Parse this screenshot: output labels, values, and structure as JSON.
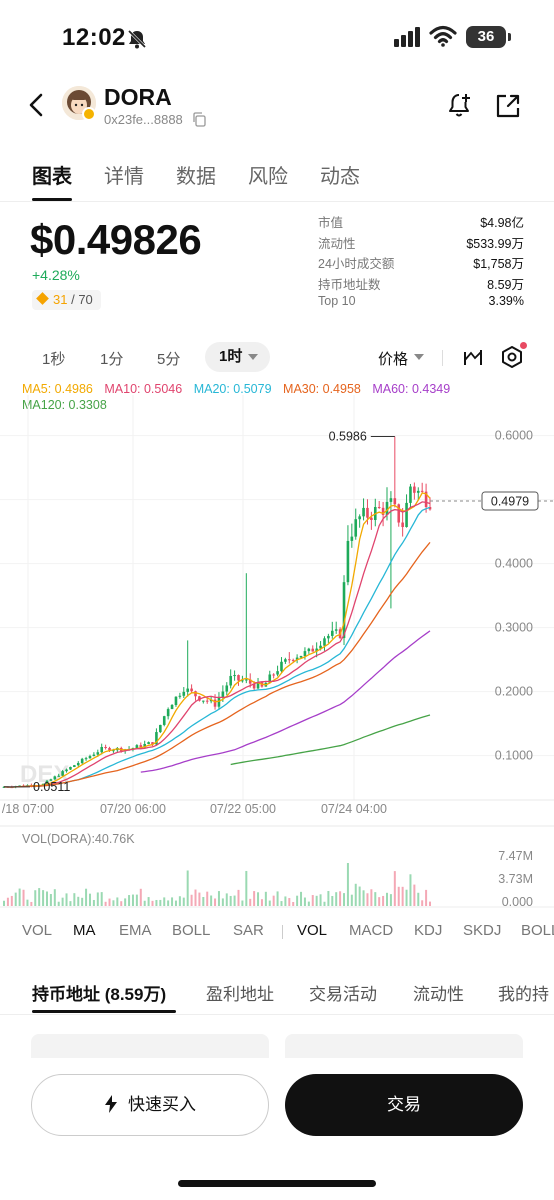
{
  "status_bar": {
    "time": "12:02",
    "battery": "36"
  },
  "header": {
    "token_name": "DORA",
    "token_address": "0x23fe...8888"
  },
  "tabs": [
    {
      "label": "图表",
      "active": true
    },
    {
      "label": "详情",
      "active": false
    },
    {
      "label": "数据",
      "active": false
    },
    {
      "label": "风险",
      "active": false
    },
    {
      "label": "动态",
      "active": false
    }
  ],
  "price": {
    "value": "$0.49826",
    "change": "+4.28%",
    "score": "31",
    "score_total": "/ 70"
  },
  "stats": [
    {
      "label": "市值",
      "value": "$4.98亿"
    },
    {
      "label": "流动性",
      "value": "$533.99万"
    },
    {
      "label": "24小时成交额",
      "value": "$1,758万"
    },
    {
      "label": "持币地址数",
      "value": "8.59万"
    },
    {
      "label": "Top 10",
      "value": "3.39%"
    }
  ],
  "chart_toolbar": {
    "timeframes": [
      "1秒",
      "1分",
      "5分",
      "1时"
    ],
    "active_timeframe": "1时",
    "price_mode": "价格"
  },
  "ma_legend": {
    "ma5": "MA5: 0.4986",
    "ma10": "MA10: 0.5046",
    "ma20": "MA20: 0.5079",
    "ma30": "MA30: 0.4958",
    "ma60": "MA60: 0.4349",
    "ma120": "MA120: 0.3308"
  },
  "chart_data": {
    "type": "line",
    "title": "",
    "y_axis_ticks": [
      "0.6000",
      "0.5000",
      "0.4000",
      "0.3000",
      "0.2000",
      "0.1000"
    ],
    "ylim": [
      0.04,
      0.64
    ],
    "x_axis_ticks": [
      "/18 07:00",
      "07/20 06:00",
      "07/22 05:00",
      "07/24 04:00"
    ],
    "current_price_label": "0.4979",
    "high_label": "0.5986",
    "low_label": "0.0511",
    "watermark": "DEX",
    "grid": true,
    "series": [
      {
        "name": "MA5",
        "color": "#f2a900"
      },
      {
        "name": "MA10",
        "color": "#e0446e"
      },
      {
        "name": "MA20",
        "color": "#27b7d6"
      },
      {
        "name": "MA30",
        "color": "#e5641e"
      },
      {
        "name": "MA60",
        "color": "#a63ec9"
      },
      {
        "name": "MA120",
        "color": "#46a347"
      }
    ],
    "volume": {
      "label": "VOL(DORA):40.76K",
      "ticks": [
        "7.47M",
        "3.73M",
        "0.000"
      ]
    }
  },
  "indicators": {
    "main": [
      "VOL",
      "MA",
      "EMA",
      "BOLL",
      "SAR"
    ],
    "main_active": "MA",
    "sub": [
      "VOL",
      "MACD",
      "KDJ",
      "SKDJ",
      "BOLL"
    ],
    "sub_active": "VOL"
  },
  "holder_tabs": [
    {
      "label": "持币地址 (8.59万)",
      "active": true
    },
    {
      "label": "盈利地址",
      "active": false
    },
    {
      "label": "交易活动",
      "active": false
    },
    {
      "label": "流动性",
      "active": false
    },
    {
      "label": "我的持",
      "active": false
    }
  ],
  "actions": {
    "quick_buy": "快速买入",
    "trade": "交易"
  },
  "colors": {
    "up": "#1eaa5a",
    "down": "#e84a62",
    "accent": "#f5a300"
  }
}
